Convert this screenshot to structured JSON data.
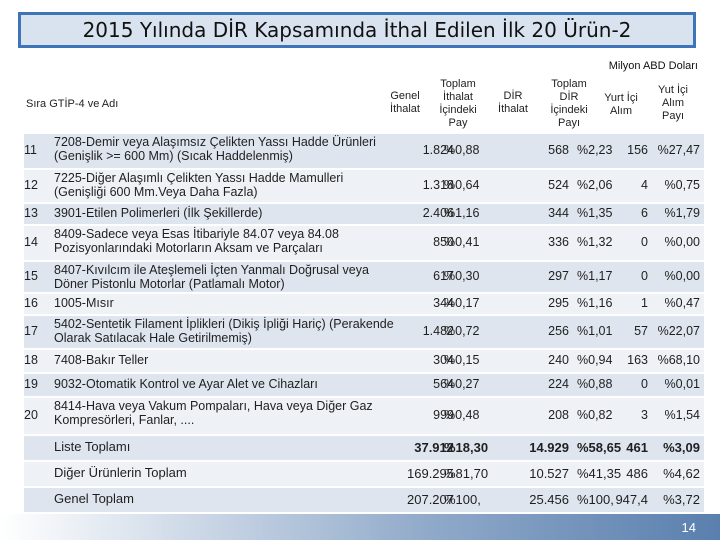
{
  "title": "2015 Yılında DİR Kapsamında İthal Edilen İlk 20 Ürün-2",
  "unit_note": "Milyon ABD Doları",
  "headers": {
    "sira_adi": "Sıra  GTİP-4 ve Adı",
    "genel_ithalat": "Genel\nİthalat",
    "toplam_ithalat_payi": "Toplam\nİthalat\nİçindeki\nPay",
    "dir_ithalat": "DİR\nİthalat",
    "toplam_dir_payi": "Toplam\nDİR\nİçindeki\nPayı",
    "yurt_ici_alim": "Yurt İçi\nAlım",
    "yurt_ici_alim_payi": "Yut İçi\nAlım\nPayı"
  },
  "rows": [
    {
      "sira": "11",
      "name": "7208-Demir veya Alaşımsız Çelikten Yassı Hadde Ürünleri (Genişlik >= 600 Mm) (Sıcak Haddelenmiş)",
      "genel": "1.824",
      "pay": "%0,88",
      "dir": "568",
      "dir_pay": "%2,23",
      "yic": "156",
      "yic_pay": "%27,47"
    },
    {
      "sira": "12",
      "name": "7225-Diğer Alaşımlı Çelikten Yassı Hadde Mamulleri (Genişliği 600 Mm.Veya Daha Fazla)",
      "genel": "1.318",
      "pay": "%0,64",
      "dir": "524",
      "dir_pay": "%2,06",
      "yic": "4",
      "yic_pay": "%0,75"
    },
    {
      "sira": "13",
      "name": "3901-Etilen Polimerleri (İlk Şekillerde)",
      "genel": "2.406",
      "pay": "%1,16",
      "dir": "344",
      "dir_pay": "%1,35",
      "yic": "6",
      "yic_pay": "%1,79"
    },
    {
      "sira": "14",
      "name": "8409-Sadece veya Esas İtibariyle 84.07 veya 84.08 Pozisyonlarındaki Motorların Aksam ve Parçaları",
      "genel": "850",
      "pay": "%0,41",
      "dir": "336",
      "dir_pay": "%1,32",
      "yic": "0",
      "yic_pay": "%0,00"
    },
    {
      "sira": "15",
      "name": "8407-Kıvılcım ile Ateşlemeli İçten Yanmalı Doğrusal veya Döner Pistonlu Motorlar (Patlamalı Motor)",
      "genel": "617",
      "pay": "%0,30",
      "dir": "297",
      "dir_pay": "%1,17",
      "yic": "0",
      "yic_pay": "%0,00"
    },
    {
      "sira": "16",
      "name": "1005-Mısır",
      "genel": "344",
      "pay": "%0,17",
      "dir": "295",
      "dir_pay": "%1,16",
      "yic": "1",
      "yic_pay": "%0,47"
    },
    {
      "sira": "17",
      "name": "5402-Sentetik Filament İplikleri (Dikiş İpliği Hariç) (Perakende Olarak Satılacak Hale Getirilmemiş)",
      "genel": "1.482",
      "pay": "%0,72",
      "dir": "256",
      "dir_pay": "%1,01",
      "yic": "57",
      "yic_pay": "%22,07"
    },
    {
      "sira": "18",
      "name": "7408-Bakır Teller",
      "genel": "304",
      "pay": "%0,15",
      "dir": "240",
      "dir_pay": "%0,94",
      "yic": "163",
      "yic_pay": "%68,10"
    },
    {
      "sira": "19",
      "name": "9032-Otomatik Kontrol ve Ayar Alet ve Cihazları",
      "genel": "564",
      "pay": "%0,27",
      "dir": "224",
      "dir_pay": "%0,88",
      "yic": "0",
      "yic_pay": "%0,01"
    },
    {
      "sira": "20",
      "name": "8414-Hava veya Vakum Pompaları, Hava veya Diğer Gaz Kompresörleri, Fanlar, ....",
      "genel": "999",
      "pay": "%0,48",
      "dir": "208",
      "dir_pay": "%0,82",
      "yic": "3",
      "yic_pay": "%1,54"
    }
  ],
  "summary": [
    {
      "name": "Liste Toplamı",
      "genel": "37.912",
      "pay": "%18,30",
      "dir": "14.929",
      "dir_pay": "%58,65",
      "yic": "461",
      "yic_pay": "%3,09"
    },
    {
      "name": "Diğer Ürünlerin Toplam",
      "genel": "169.295",
      "pay": "%81,70",
      "dir": "10.527",
      "dir_pay": "%41,35",
      "yic": "486",
      "yic_pay": "%4,62"
    },
    {
      "name": "Genel Toplam",
      "genel": "207.207",
      "pay": "%100,",
      "dir": "25.456",
      "dir_pay": "%100,",
      "yic": "947,4",
      "yic_pay": "%3,72"
    }
  ],
  "page_number": "14",
  "colors": {
    "title_border": "#3f74b8",
    "title_bg": "#d9e3f0",
    "row_odd": "#dfe5ee",
    "row_even": "#eef1f6"
  }
}
